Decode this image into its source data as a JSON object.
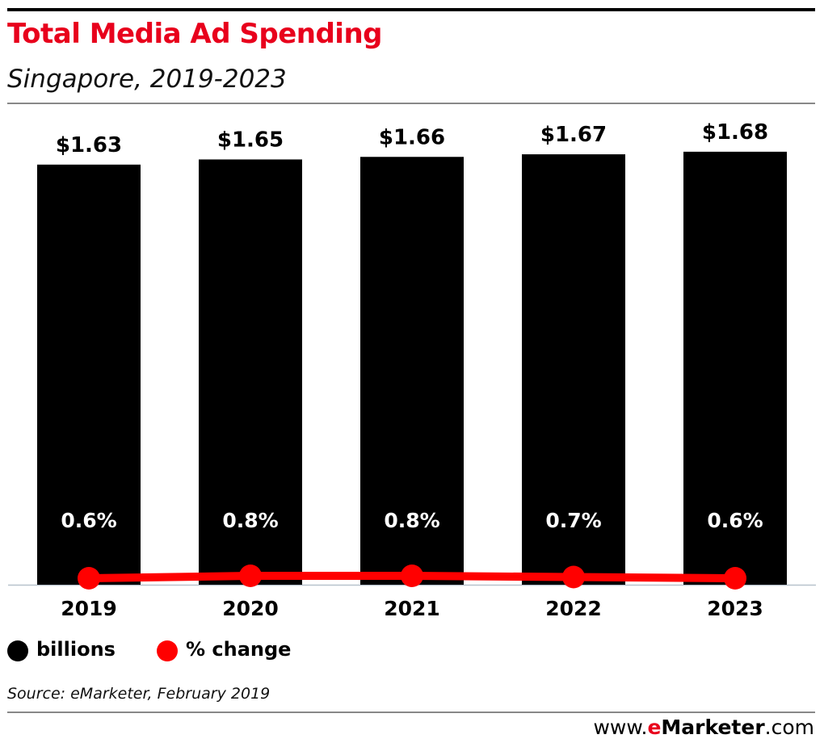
{
  "header": {
    "title": "Total Media Ad Spending",
    "subtitle": "Singapore, 2019-2023"
  },
  "chart_data": {
    "type": "bar",
    "categories": [
      "2019",
      "2020",
      "2021",
      "2022",
      "2023"
    ],
    "series": [
      {
        "name": "billions",
        "type": "bar",
        "values": [
          1.63,
          1.65,
          1.66,
          1.67,
          1.68
        ],
        "labels": [
          "$1.63",
          "$1.65",
          "$1.66",
          "$1.67",
          "$1.68"
        ],
        "color": "#000000"
      },
      {
        "name": "% change",
        "type": "line",
        "values": [
          0.6,
          0.8,
          0.8,
          0.7,
          0.6
        ],
        "labels": [
          "0.6%",
          "0.8%",
          "0.8%",
          "0.7%",
          "0.6%"
        ],
        "color": "#ff0000"
      }
    ],
    "ylim": [
      0,
      1.83
    ],
    "grid": false,
    "legend": "bottom-left"
  },
  "legend": {
    "items": [
      {
        "label": "billions",
        "color": "#000000"
      },
      {
        "label": "% change",
        "color": "#ff0000"
      }
    ]
  },
  "footer": {
    "source": "Source: eMarketer, February 2019",
    "brand_prefix": "www.",
    "brand_e": "e",
    "brand_marketer": "Marketer",
    "brand_suffix": ".com"
  }
}
